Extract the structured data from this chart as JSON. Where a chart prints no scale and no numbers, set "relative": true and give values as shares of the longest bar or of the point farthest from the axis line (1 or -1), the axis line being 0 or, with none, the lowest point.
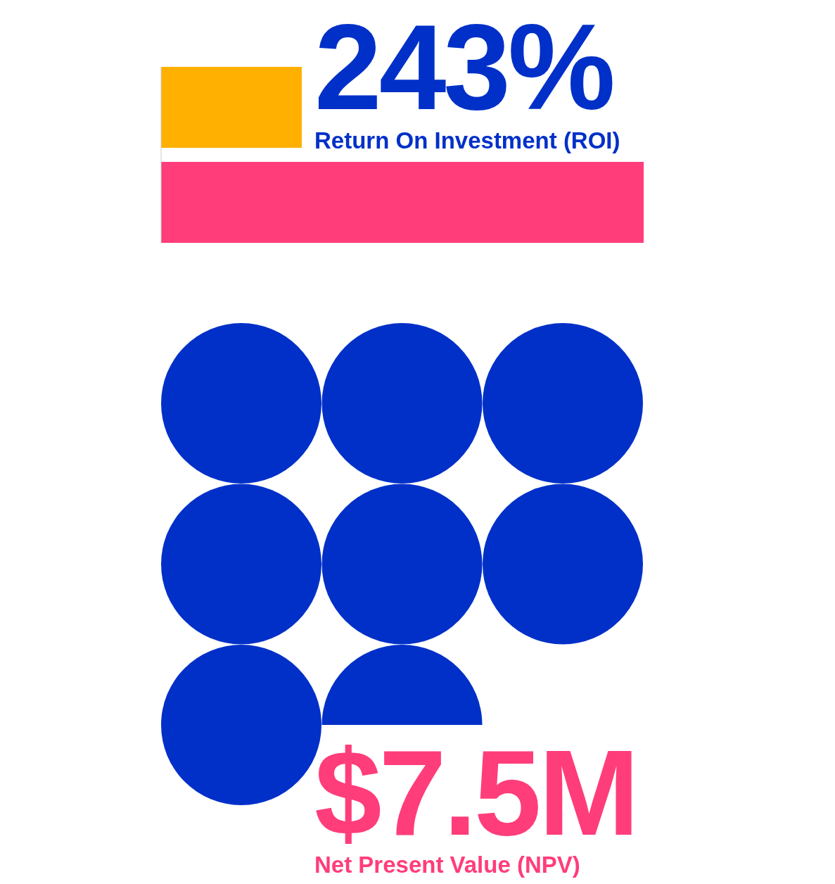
{
  "chart_data": [
    {
      "type": "bar",
      "orientation": "horizontal",
      "relative": true,
      "title": "243%",
      "subtitle": "Return On Investment (ROI)",
      "categories": [
        null,
        null
      ],
      "values": [
        0.2915,
        1
      ],
      "colors": [
        "#ffb000",
        "#ff3d7a"
      ]
    },
    {
      "type": "other",
      "title": "$7.5M",
      "subtitle": "Net Present Value (NPV)"
    }
  ]
}
